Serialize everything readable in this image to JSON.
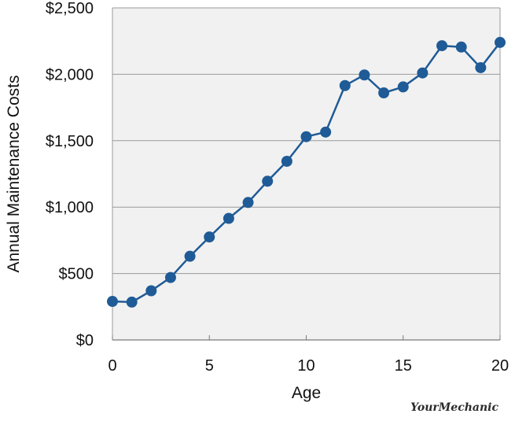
{
  "chart_data": {
    "type": "line",
    "title": "",
    "xlabel": "Age",
    "ylabel": "Annual Maintenance Costs",
    "xlim": [
      0,
      20
    ],
    "ylim": [
      0,
      2500
    ],
    "x_ticks": [
      {
        "value": 0,
        "label": "0"
      },
      {
        "value": 5,
        "label": "5"
      },
      {
        "value": 10,
        "label": "10"
      },
      {
        "value": 15,
        "label": "15"
      },
      {
        "value": 20,
        "label": "20"
      }
    ],
    "y_ticks": [
      {
        "value": 0,
        "label": "$0"
      },
      {
        "value": 500,
        "label": "$500"
      },
      {
        "value": 1000,
        "label": "$1,000"
      },
      {
        "value": 1500,
        "label": "$1,500"
      },
      {
        "value": 2000,
        "label": "$2,000"
      },
      {
        "value": 2500,
        "label": "$2,500"
      }
    ],
    "grid": "horizontal",
    "legend": "none",
    "colors": {
      "series": "#1f5b96",
      "plot_background": "#f1f1f1",
      "gridline": "#9a9a9a"
    },
    "series": [
      {
        "x": [
          0,
          1,
          2,
          3,
          4,
          5,
          6,
          7,
          8,
          9,
          10,
          11,
          12,
          13,
          14,
          15,
          16,
          17,
          18,
          19,
          20
        ],
        "values": [
          290,
          285,
          370,
          470,
          630,
          775,
          915,
          1035,
          1195,
          1345,
          1530,
          1565,
          1915,
          1995,
          1860,
          1905,
          2010,
          2215,
          2205,
          2050,
          2240
        ]
      }
    ]
  },
  "watermark": "YourMechanic"
}
